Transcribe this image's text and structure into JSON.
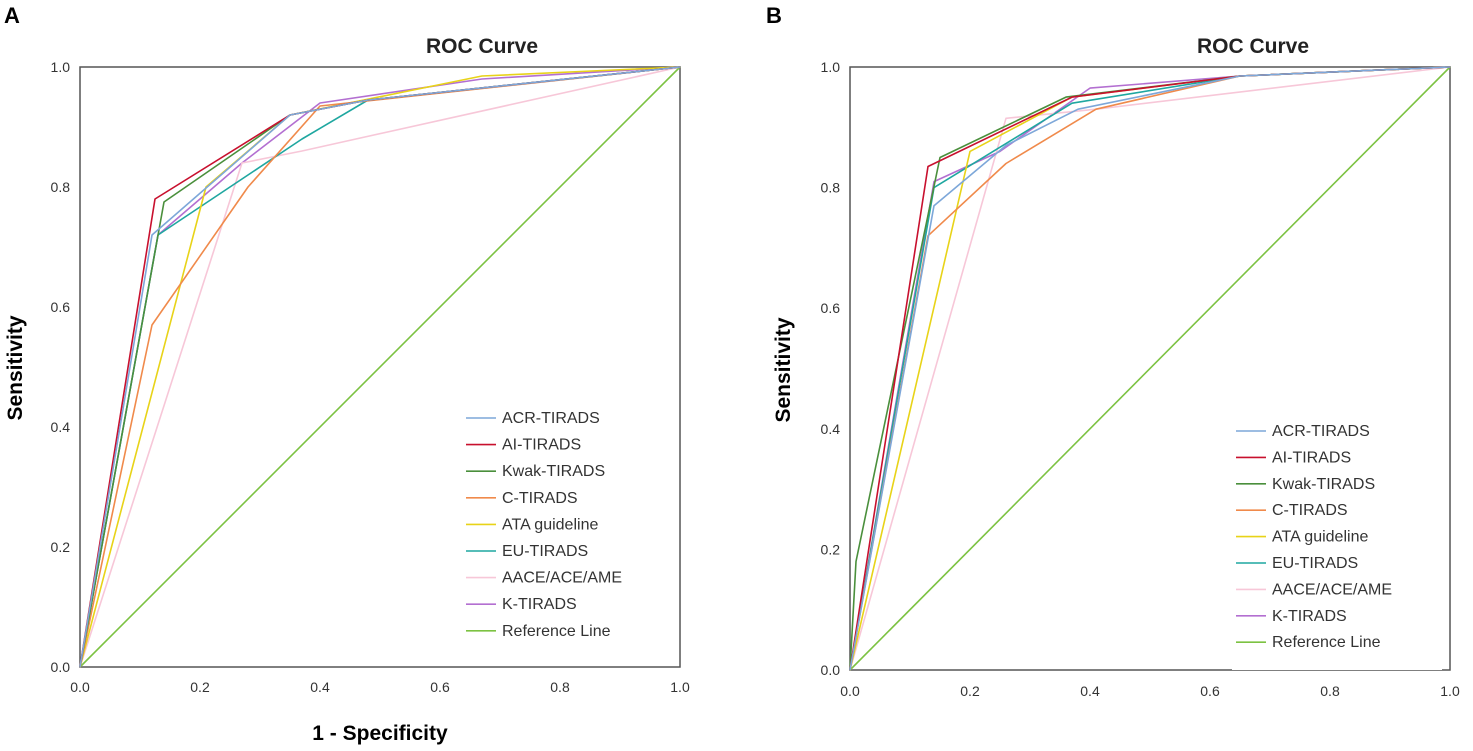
{
  "figure": {
    "panels": [
      "A",
      "B"
    ]
  },
  "chart_data": [
    {
      "panel": "A",
      "type": "line",
      "title": "ROC Curve",
      "xlabel": "1 - Specificity",
      "ylabel": "Sensitivity",
      "xlim": [
        0,
        1
      ],
      "ylim": [
        0,
        1
      ],
      "xticks": [
        "0.0",
        "0.2",
        "0.4",
        "0.6",
        "0.8",
        "1.0"
      ],
      "yticks": [
        "0.0",
        "0.2",
        "0.4",
        "0.6",
        "0.8",
        "1.0"
      ],
      "grid": false,
      "legend_position": "bottom-right",
      "series": [
        {
          "name": "ACR-TIRADS",
          "color": "#7da7d9",
          "x": [
            0,
            0.12,
            0.35,
            0.48,
            1.0
          ],
          "y": [
            0,
            0.72,
            0.92,
            0.945,
            1.0
          ]
        },
        {
          "name": "AI-TIRADS",
          "color": "#c8102e",
          "x": [
            0,
            0.125,
            0.35,
            0.48,
            1.0
          ],
          "y": [
            0,
            0.78,
            0.92,
            0.945,
            1.0
          ]
        },
        {
          "name": "Kwak-TIRADS",
          "color": "#4a8f3c",
          "x": [
            0,
            0.14,
            0.35,
            0.48,
            1.0
          ],
          "y": [
            0,
            0.775,
            0.92,
            0.945,
            1.0
          ]
        },
        {
          "name": "C-TIRADS",
          "color": "#f08a4b",
          "x": [
            0,
            0.12,
            0.28,
            0.4,
            1.0
          ],
          "y": [
            0,
            0.57,
            0.8,
            0.935,
            1.0
          ]
        },
        {
          "name": "ATA guideline",
          "color": "#e8d318",
          "x": [
            0,
            0.21,
            0.35,
            0.67,
            1.0
          ],
          "y": [
            0,
            0.8,
            0.92,
            0.985,
            1.0
          ]
        },
        {
          "name": "EU-TIRADS",
          "color": "#1fa7a0",
          "x": [
            0,
            0.13,
            0.37,
            0.48,
            1.0
          ],
          "y": [
            0,
            0.72,
            0.88,
            0.945,
            1.0
          ]
        },
        {
          "name": "AACE/ACE/AME",
          "color": "#f7c7d8",
          "x": [
            0,
            0.27,
            0.37,
            1.0
          ],
          "y": [
            0,
            0.84,
            0.86,
            1.0
          ]
        },
        {
          "name": "K-TIRADS",
          "color": "#b36fd1",
          "x": [
            0,
            0.13,
            0.27,
            0.4,
            0.67,
            1.0
          ],
          "y": [
            0,
            0.72,
            0.84,
            0.94,
            0.98,
            1.0
          ]
        },
        {
          "name": "Reference Line",
          "color": "#7cc242",
          "x": [
            0,
            1.0
          ],
          "y": [
            0,
            1.0
          ]
        }
      ]
    },
    {
      "panel": "B",
      "type": "line",
      "title": "ROC Curve",
      "xlabel": "",
      "ylabel": "Sensitivity",
      "xlim": [
        0,
        1
      ],
      "ylim": [
        0,
        1
      ],
      "xticks": [
        "0.0",
        "0.2",
        "0.4",
        "0.6",
        "0.8",
        "1.0"
      ],
      "yticks": [
        "0.0",
        "0.2",
        "0.4",
        "0.6",
        "0.8",
        "1.0"
      ],
      "grid": false,
      "legend_position": "bottom-right",
      "series": [
        {
          "name": "ACR-TIRADS",
          "color": "#7da7d9",
          "x": [
            0,
            0.14,
            0.26,
            0.38,
            0.65,
            1.0
          ],
          "y": [
            0,
            0.77,
            0.87,
            0.93,
            0.985,
            1.0
          ]
        },
        {
          "name": "AI-TIRADS",
          "color": "#c8102e",
          "x": [
            0,
            0.13,
            0.37,
            0.65,
            1.0
          ],
          "y": [
            0,
            0.835,
            0.95,
            0.985,
            1.0
          ]
        },
        {
          "name": "Kwak-TIRADS",
          "color": "#4a8f3c",
          "x": [
            0,
            0.01,
            0.15,
            0.36,
            0.65,
            1.0
          ],
          "y": [
            0,
            0.18,
            0.85,
            0.95,
            0.985,
            1.0
          ]
        },
        {
          "name": "C-TIRADS",
          "color": "#f08a4b",
          "x": [
            0,
            0.13,
            0.26,
            0.41,
            0.65,
            1.0
          ],
          "y": [
            0,
            0.72,
            0.84,
            0.93,
            0.985,
            1.0
          ]
        },
        {
          "name": "ATA guideline",
          "color": "#e8d318",
          "x": [
            0,
            0.2,
            0.37,
            0.65,
            1.0
          ],
          "y": [
            0,
            0.86,
            0.95,
            0.985,
            1.0
          ]
        },
        {
          "name": "EU-TIRADS",
          "color": "#1fa7a0",
          "x": [
            0,
            0.14,
            0.37,
            0.65,
            1.0
          ],
          "y": [
            0,
            0.8,
            0.94,
            0.985,
            1.0
          ]
        },
        {
          "name": "AACE/ACE/AME",
          "color": "#f7c7d8",
          "x": [
            0,
            0.26,
            0.41,
            1.0
          ],
          "y": [
            0,
            0.915,
            0.93,
            1.0
          ]
        },
        {
          "name": "K-TIRADS",
          "color": "#b36fd1",
          "x": [
            0,
            0.14,
            0.25,
            0.4,
            0.65,
            1.0
          ],
          "y": [
            0,
            0.81,
            0.86,
            0.965,
            0.985,
            1.0
          ]
        },
        {
          "name": "Reference Line",
          "color": "#7cc242",
          "x": [
            0,
            1.0
          ],
          "y": [
            0,
            1.0
          ]
        }
      ]
    }
  ]
}
